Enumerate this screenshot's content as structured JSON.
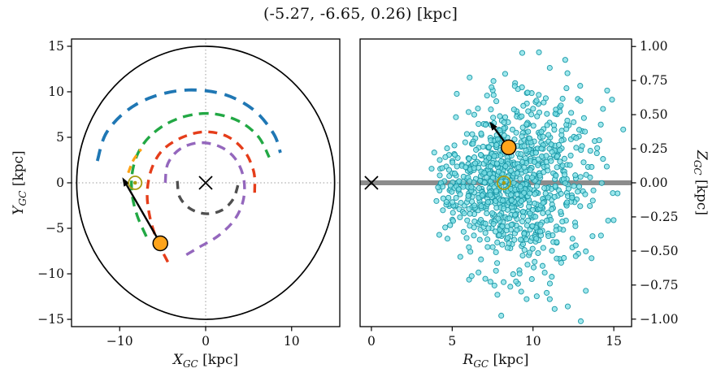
{
  "title": "(-5.27, -6.65, 0.26) [kpc]",
  "chart_data": {
    "panels": {
      "left": {
        "type": "scatter",
        "xlim": [
          -15.6,
          15.6
        ],
        "ylim": [
          -15.8,
          15.8
        ],
        "xticks": [
          -10,
          0,
          10
        ],
        "xtick_labels": [
          "−10",
          "0",
          "10"
        ],
        "yticks": [
          -15,
          -10,
          -5,
          0,
          5,
          10,
          15
        ],
        "ytick_labels": [
          "−15",
          "−10",
          "−5",
          "0",
          "5",
          "10",
          "15"
        ],
        "xlabel": {
          "pre": "X",
          "sub": "GC",
          "post": " [kpc]",
          "text": "X_GC [kpc]"
        },
        "ylabel": {
          "pre": "Y",
          "sub": "GC",
          "post": " [kpc]",
          "text": "Y_GC [kpc]"
        },
        "grid": "crosshair-dotted",
        "crosshair_color": "#9a9a9a",
        "boundary_circle": {
          "cx": 0,
          "cy": 0,
          "r": 15,
          "color": "#000000"
        },
        "center_marker": {
          "x": 0,
          "y": 0,
          "symbol": "x",
          "color": "#000000"
        },
        "sun_marker": {
          "x": -8.2,
          "y": 0,
          "color": "#a89b10"
        },
        "object_marker": {
          "x": -5.27,
          "y": -6.65,
          "fill": "#ffa41b",
          "edge": "#000000"
        },
        "arrow": {
          "x1": -5.27,
          "y1": -6.65,
          "x2": -9.7,
          "y2": 0.6,
          "color": "#000000"
        },
        "spiral_arms": [
          {
            "name": "outer-blue-arm",
            "color": "#1f77b4",
            "width": 3.8,
            "dash": "15 10",
            "points": [
              [
                -12.6,
                2.4
              ],
              [
                -11.6,
                5.4
              ],
              [
                -9.2,
                7.9
              ],
              [
                -6.0,
                9.5
              ],
              [
                -2.0,
                10.2
              ],
              [
                2.2,
                9.7
              ],
              [
                5.6,
                8.0
              ],
              [
                7.9,
                5.4
              ],
              [
                8.7,
                3.3
              ]
            ]
          },
          {
            "name": "green-arm",
            "color": "#22a844",
            "width": 3.4,
            "dash": "12 8",
            "points": [
              [
                -6.9,
                -5.9
              ],
              [
                -8.0,
                -3.5
              ],
              [
                -8.6,
                -0.9
              ],
              [
                -8.4,
                1.8
              ],
              [
                -7.3,
                4.2
              ],
              [
                -5.2,
                6.1
              ],
              [
                -2.4,
                7.3
              ],
              [
                0.7,
                7.6
              ],
              [
                3.8,
                6.8
              ],
              [
                6.1,
                5.1
              ],
              [
                7.4,
                2.8
              ]
            ]
          },
          {
            "name": "local-orange-arm",
            "color": "#ffa215",
            "width": 3.2,
            "dash": "9 6",
            "points": [
              [
                -9.0,
                1.1
              ],
              [
                -8.4,
                2.5
              ],
              [
                -7.5,
                3.7
              ]
            ]
          },
          {
            "name": "red-arm",
            "color": "#e53d1a",
            "width": 3.4,
            "dash": "11 8",
            "points": [
              [
                -4.4,
                -8.7
              ],
              [
                -5.7,
                -6.2
              ],
              [
                -6.5,
                -3.7
              ],
              [
                -6.8,
                -1.1
              ],
              [
                -6.3,
                1.5
              ],
              [
                -5.0,
                3.6
              ],
              [
                -2.7,
                5.0
              ],
              [
                -0.1,
                5.6
              ],
              [
                2.5,
                5.1
              ],
              [
                4.5,
                3.5
              ],
              [
                5.6,
                1.2
              ],
              [
                5.7,
                -1.1
              ]
            ]
          },
          {
            "name": "purple-arm",
            "color": "#9467bd",
            "width": 3.4,
            "dash": "11 8",
            "points": [
              [
                -4.7,
                0.0
              ],
              [
                -4.4,
                2.1
              ],
              [
                -3.0,
                3.7
              ],
              [
                -0.8,
                4.4
              ],
              [
                1.6,
                4.0
              ],
              [
                3.4,
                2.7
              ],
              [
                4.4,
                0.6
              ],
              [
                4.4,
                -1.8
              ],
              [
                3.4,
                -4.0
              ],
              [
                1.5,
                -5.8
              ],
              [
                -0.8,
                -7.1
              ],
              [
                -2.6,
                -8.1
              ]
            ]
          },
          {
            "name": "inner-gray-arm",
            "color": "#4f4f4f",
            "width": 3.4,
            "dash": "10 8",
            "points": [
              [
                -3.3,
                0.2
              ],
              [
                -3.0,
                -1.6
              ],
              [
                -1.7,
                -2.9
              ],
              [
                0.1,
                -3.4
              ],
              [
                1.9,
                -3.0
              ],
              [
                3.2,
                -1.8
              ],
              [
                3.8,
                -0.1
              ]
            ]
          }
        ]
      },
      "right": {
        "type": "scatter",
        "xlim": [
          -0.7,
          16.1
        ],
        "ylim": [
          -1.055,
          1.055
        ],
        "xticks": [
          0,
          5,
          10,
          15
        ],
        "xtick_labels": [
          "0",
          "5",
          "10",
          "15"
        ],
        "yticks": [
          1.0,
          0.75,
          0.5,
          0.25,
          0.0,
          -0.25,
          -0.5,
          -0.75,
          -1.0
        ],
        "ytick_labels": [
          "1.00",
          "0.75",
          "0.50",
          "0.25",
          "0.00",
          "−0.25",
          "−0.50",
          "−0.75",
          "−1.00"
        ],
        "yticks_side": "right",
        "xlabel": {
          "pre": "R",
          "sub": "GC",
          "post": " [kpc]",
          "text": "R_GC [kpc]"
        },
        "ylabel": {
          "pre": "Z",
          "sub": "GC",
          "post": " [kpc]",
          "text": "Z_GC [kpc]"
        },
        "midplane_line": {
          "y": 0,
          "color": "#8c8c8c",
          "width": 6
        },
        "center_marker": {
          "x": 0,
          "y": 0,
          "symbol": "x",
          "color": "#000000"
        },
        "sun_marker": {
          "x": 8.2,
          "y": 0,
          "color": "#a89b10"
        },
        "object_marker": {
          "x": 8.49,
          "y": 0.26,
          "fill": "#ffa41b",
          "edge": "#000000"
        },
        "arrow": {
          "x1": 8.49,
          "y1": 0.26,
          "x2": 7.3,
          "y2": 0.45,
          "color": "#000000"
        },
        "scatter": {
          "seed": 20240613,
          "n": 950,
          "r_mean": 8.8,
          "r_sd": 2.3,
          "r_min": 3.7,
          "r_max": 16.0,
          "z_base": 0.07,
          "z_flare": 0.023,
          "tail_frac": 0.12,
          "tail_mult": 2.1,
          "z_clip": 1.02,
          "fill": "#7ddfe6",
          "edge": "#1b99a8",
          "radius": 3.1,
          "opacity": 0.75
        }
      }
    }
  }
}
